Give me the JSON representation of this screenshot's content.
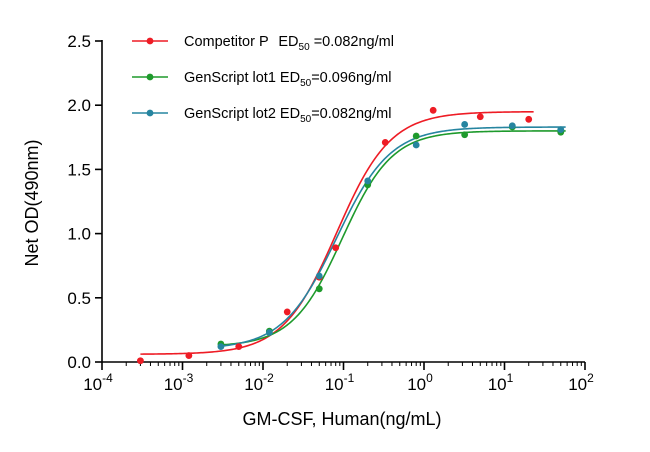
{
  "chart_data": {
    "type": "scatter",
    "x_scale": "log",
    "x_label": "GM-CSF, Human(ng/mL)",
    "y_label": "Net OD(490nm)",
    "x_range": [
      0.0001,
      100
    ],
    "y_range": [
      0,
      2.5
    ],
    "x_ticks": [
      {
        "value": 0.0001,
        "base": "10",
        "exp": "-4"
      },
      {
        "value": 0.001,
        "base": "10",
        "exp": "-3"
      },
      {
        "value": 0.01,
        "base": "10",
        "exp": "-2"
      },
      {
        "value": 0.1,
        "base": "10",
        "exp": "-1"
      },
      {
        "value": 1,
        "base": "10",
        "exp": "0"
      },
      {
        "value": 10,
        "base": "10",
        "exp": "1"
      },
      {
        "value": 100,
        "base": "10",
        "exp": "2"
      }
    ],
    "y_ticks": [
      {
        "value": 0,
        "label": "0.0"
      },
      {
        "value": 0.5,
        "label": "0.5"
      },
      {
        "value": 1,
        "label": "1.0"
      },
      {
        "value": 1.5,
        "label": "1.5"
      },
      {
        "value": 2,
        "label": "2.0"
      },
      {
        "value": 2.5,
        "label": "2.5"
      }
    ],
    "grid": false,
    "legend_position": "top-left",
    "series": [
      {
        "legend": {
          "name": "Competitor P",
          "ed_prefix": "ED",
          "ed_sub": "50",
          "ed_value": " =0.082ng/ml"
        },
        "color": "#ee1c25",
        "fit": {
          "bottom": 0.06,
          "top": 1.95,
          "ec50": 0.082,
          "hill": 1.3
        },
        "x": [
          0.0003,
          0.0012,
          0.005,
          0.02,
          0.05,
          0.08,
          0.33,
          1.3,
          5,
          20
        ],
        "y": [
          0.01,
          0.05,
          0.12,
          0.39,
          0.66,
          0.89,
          1.71,
          1.96,
          1.91,
          1.89
        ]
      },
      {
        "legend": {
          "name": "GenScript lot1",
          "ed_prefix": "ED",
          "ed_sub": "50",
          "ed_value": "=0.096ng/ml"
        },
        "color": "#1e9a2c",
        "fit": {
          "bottom": 0.12,
          "top": 1.8,
          "ec50": 0.096,
          "hill": 1.4
        },
        "x": [
          0.003,
          0.012,
          0.05,
          0.2,
          0.8,
          3.2,
          12.5,
          50
        ],
        "y": [
          0.14,
          0.24,
          0.57,
          1.38,
          1.76,
          1.77,
          1.83,
          1.79
        ]
      },
      {
        "legend": {
          "name": "GenScript lot2",
          "ed_prefix": "ED",
          "ed_sub": "50",
          "ed_value": "=0.082ng/ml"
        },
        "color": "#2685a0",
        "fit": {
          "bottom": 0.1,
          "top": 1.83,
          "ec50": 0.082,
          "hill": 1.3
        },
        "x": [
          0.003,
          0.012,
          0.05,
          0.2,
          0.8,
          3.2,
          12.5,
          50
        ],
        "y": [
          0.12,
          0.23,
          0.67,
          1.41,
          1.69,
          1.85,
          1.84,
          1.81
        ]
      }
    ]
  }
}
